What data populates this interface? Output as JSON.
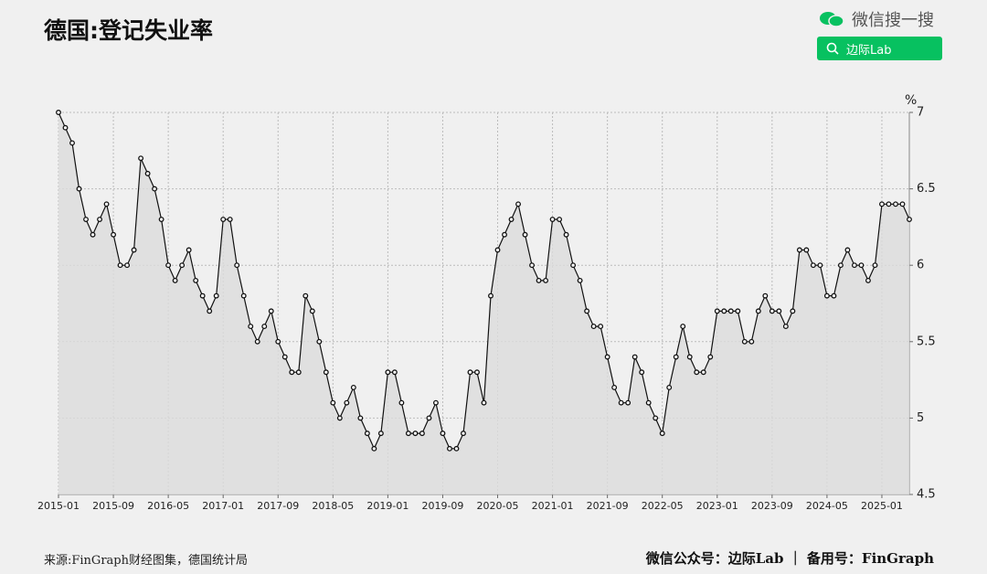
{
  "header": {
    "search_brand": "微信搜一搜",
    "search_button": "边际Lab"
  },
  "footer_right": "微信公众号：边际Lab ｜ 备用号：FinGraph",
  "chart_data": {
    "type": "line",
    "title": "德国:登记失业率",
    "unit_label": "%",
    "source": "来源:FinGraph财经图集，德国统计局",
    "categories": [
      "2015-01",
      null,
      null,
      null,
      null,
      null,
      null,
      null,
      "2015-09",
      null,
      null,
      null,
      null,
      null,
      null,
      null,
      "2016-05",
      null,
      null,
      null,
      null,
      null,
      null,
      null,
      "2017-01",
      null,
      null,
      null,
      null,
      null,
      null,
      null,
      "2017-09",
      null,
      null,
      null,
      null,
      null,
      null,
      null,
      "2018-05",
      null,
      null,
      null,
      null,
      null,
      null,
      null,
      "2019-01",
      null,
      null,
      null,
      null,
      null,
      null,
      null,
      "2019-09",
      null,
      null,
      null,
      null,
      null,
      null,
      null,
      "2020-05",
      null,
      null,
      null,
      null,
      null,
      null,
      null,
      "2021-01",
      null,
      null,
      null,
      null,
      null,
      null,
      null,
      "2021-09",
      null,
      null,
      null,
      null,
      null,
      null,
      null,
      "2022-05",
      null,
      null,
      null,
      null,
      null,
      null,
      null,
      "2023-01",
      null,
      null,
      null,
      null,
      null,
      null,
      null,
      "2023-09",
      null,
      null,
      null,
      null,
      null,
      null,
      null,
      "2024-05",
      null,
      null,
      null,
      null,
      null,
      null,
      null,
      "2025-01",
      null,
      null,
      null,
      null
    ],
    "series": [
      {
        "name": "登记失业率",
        "color": "#111111",
        "values": [
          7.0,
          6.9,
          6.8,
          6.5,
          6.3,
          6.2,
          6.3,
          6.4,
          6.2,
          6.0,
          6.0,
          6.1,
          6.7,
          6.6,
          6.5,
          6.3,
          6.0,
          5.9,
          6.0,
          6.1,
          5.9,
          5.8,
          5.7,
          5.8,
          6.3,
          6.3,
          6.0,
          5.8,
          5.6,
          5.5,
          5.6,
          5.7,
          5.5,
          5.4,
          5.3,
          5.3,
          5.8,
          5.7,
          5.5,
          5.3,
          5.1,
          5.0,
          5.1,
          5.2,
          5.0,
          4.9,
          4.8,
          4.9,
          5.3,
          5.3,
          5.1,
          4.9,
          4.9,
          4.9,
          5.0,
          5.1,
          4.9,
          4.8,
          4.8,
          4.9,
          5.3,
          5.3,
          5.1,
          5.8,
          6.1,
          6.2,
          6.3,
          6.4,
          6.2,
          6.0,
          5.9,
          5.9,
          6.3,
          6.3,
          6.2,
          6.0,
          5.9,
          5.7,
          5.6,
          5.6,
          5.4,
          5.2,
          5.1,
          5.1,
          5.4,
          5.3,
          5.1,
          5.0,
          4.9,
          5.2,
          5.4,
          5.6,
          5.4,
          5.3,
          5.3,
          5.4,
          5.7,
          5.7,
          5.7,
          5.7,
          5.5,
          5.5,
          5.7,
          5.8,
          5.7,
          5.7,
          5.6,
          5.7,
          6.1,
          6.1,
          6.0,
          6.0,
          5.8,
          5.8,
          6.0,
          6.1,
          6.0,
          6.0,
          5.9,
          6.0,
          6.4,
          6.4,
          6.4,
          6.4,
          6.3
        ]
      }
    ],
    "ylim": [
      4.5,
      7
    ],
    "yticks": [
      4.5,
      5,
      5.5,
      6,
      6.5,
      7
    ],
    "grid": true,
    "area_fill": "#dcdcdc"
  }
}
